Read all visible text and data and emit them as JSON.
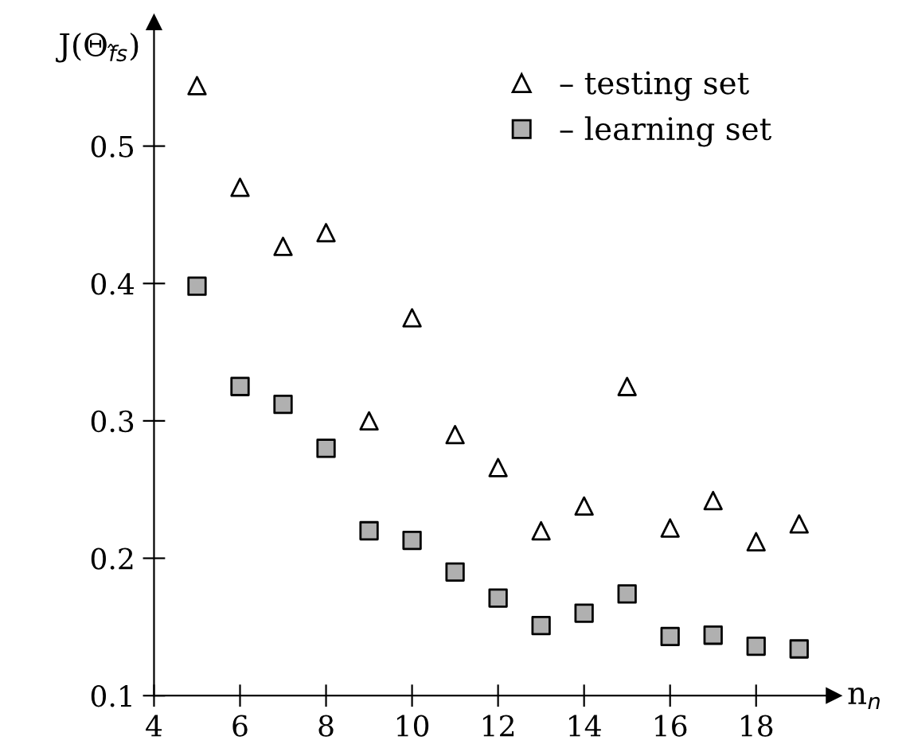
{
  "chart_data": {
    "type": "scatter",
    "xlabel": "n$_{n}$",
    "ylabel": "J(Θ$_{f̂s}$)",
    "x": [
      5,
      6,
      7,
      8,
      9,
      10,
      11,
      12,
      13,
      14,
      15,
      16,
      17,
      18,
      19
    ],
    "series": [
      {
        "name": "– testing set",
        "color": "#ffffff",
        "marker": "triangle",
        "values": [
          0.544,
          0.47,
          0.427,
          0.437,
          0.3,
          0.375,
          0.29,
          0.266,
          0.22,
          0.238,
          0.325,
          0.222,
          0.242,
          0.212,
          0.225
        ]
      },
      {
        "name": "– learning set",
        "color": "#b0b0b0",
        "marker": "square",
        "values": [
          0.398,
          0.325,
          0.312,
          0.28,
          0.22,
          0.213,
          0.19,
          0.171,
          0.151,
          0.16,
          0.174,
          0.143,
          0.144,
          0.136,
          0.134
        ]
      }
    ],
    "xlim": [
      4,
      19.8
    ],
    "ylim": [
      0.1,
      0.59
    ],
    "xticks": [
      4,
      6,
      8,
      10,
      12,
      14,
      16,
      18
    ],
    "yticks": [
      0.1,
      0.2,
      0.3,
      0.4,
      0.5
    ],
    "grid": false,
    "legend": "top right"
  }
}
